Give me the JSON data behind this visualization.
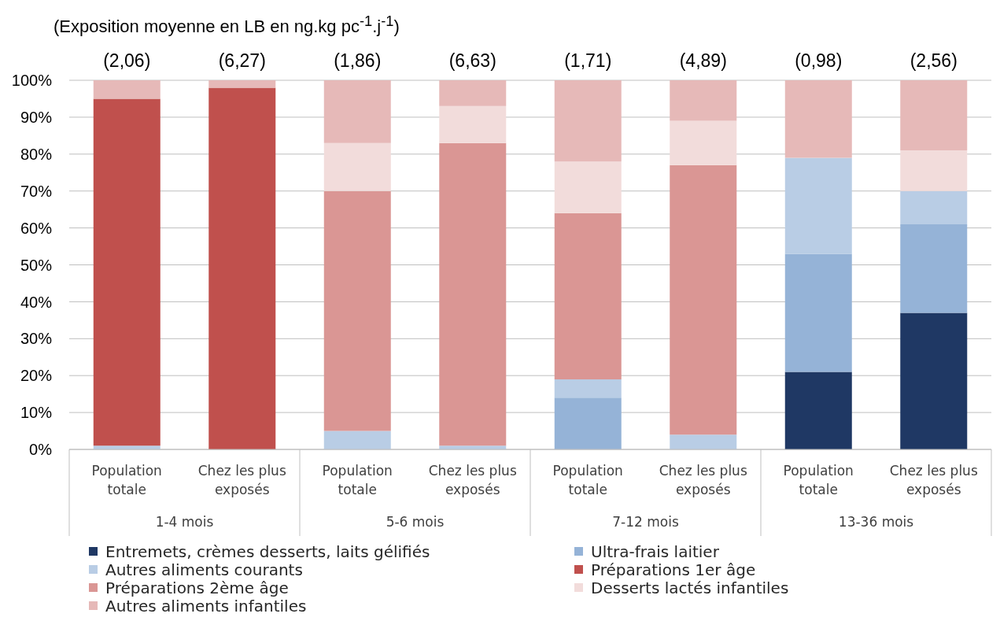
{
  "chart_data": {
    "type": "bar",
    "stacked": true,
    "title": "(Exposition moyenne en LB en ng.kg pc$^{-1}$.j$^{-1}$)",
    "categories": [
      "Population totale",
      "Chez les plus exposés",
      "Population totale",
      "Chez les plus exposés",
      "Population totale",
      "Chez les plus exposés",
      "Population totale",
      "Chez les plus exposés"
    ],
    "annotations": [
      "(2,06)",
      "(6,27)",
      "(1,86)",
      "(6,63)",
      "(1,71)",
      "(4,89)",
      "(0,98)",
      "(2,56)",
      "1-4 mois",
      "5-6 mois",
      "7-12 mois",
      "13-36 mois"
    ],
    "series": [
      {
        "name": "Entremets, crèmes desserts, laits gélifiés",
        "color": "#1f3864",
        "values": [
          0,
          0,
          0,
          0,
          0,
          0,
          21,
          37
        ]
      },
      {
        "name": "Ultra-frais laitier",
        "color": "#95b3d7",
        "values": [
          0,
          0,
          0,
          0,
          14,
          0,
          32,
          24
        ]
      },
      {
        "name": "Autres aliments courants",
        "color": "#b9cde5",
        "values": [
          1,
          0,
          5,
          1,
          5,
          4,
          26,
          9
        ]
      },
      {
        "name": "Préparations 1er âge",
        "color": "#c0504d",
        "values": [
          94,
          98,
          0,
          0,
          0,
          0,
          0,
          0
        ]
      },
      {
        "name": "Préparations 2ème âge",
        "color": "#da9694",
        "values": [
          0,
          0,
          65,
          82,
          45,
          73,
          0,
          0
        ]
      },
      {
        "name": "Desserts lactés infantiles",
        "color": "#f2dcdb",
        "values": [
          0,
          0,
          13,
          10,
          14,
          12,
          0,
          11
        ]
      },
      {
        "name": "Autres aliments infantiles",
        "color": "#e6b9b8",
        "values": [
          5,
          2,
          17,
          7,
          22,
          11,
          21,
          19
        ]
      }
    ],
    "ylim": [
      0,
      100
    ],
    "yticks": [
      {
        "value": 0,
        "label": "0%"
      },
      {
        "value": 10,
        "label": "10%"
      },
      {
        "value": 20,
        "label": "20%"
      },
      {
        "value": 30,
        "label": "30%"
      },
      {
        "value": 40,
        "label": "40%"
      },
      {
        "value": 50,
        "label": "50%"
      },
      {
        "value": 60,
        "label": "60%"
      },
      {
        "value": 70,
        "label": "70%"
      },
      {
        "value": 80,
        "label": "80%"
      },
      {
        "value": 90,
        "label": "90%"
      },
      {
        "value": 100,
        "label": "100%"
      }
    ],
    "grid": "y",
    "legend": "bottom"
  }
}
